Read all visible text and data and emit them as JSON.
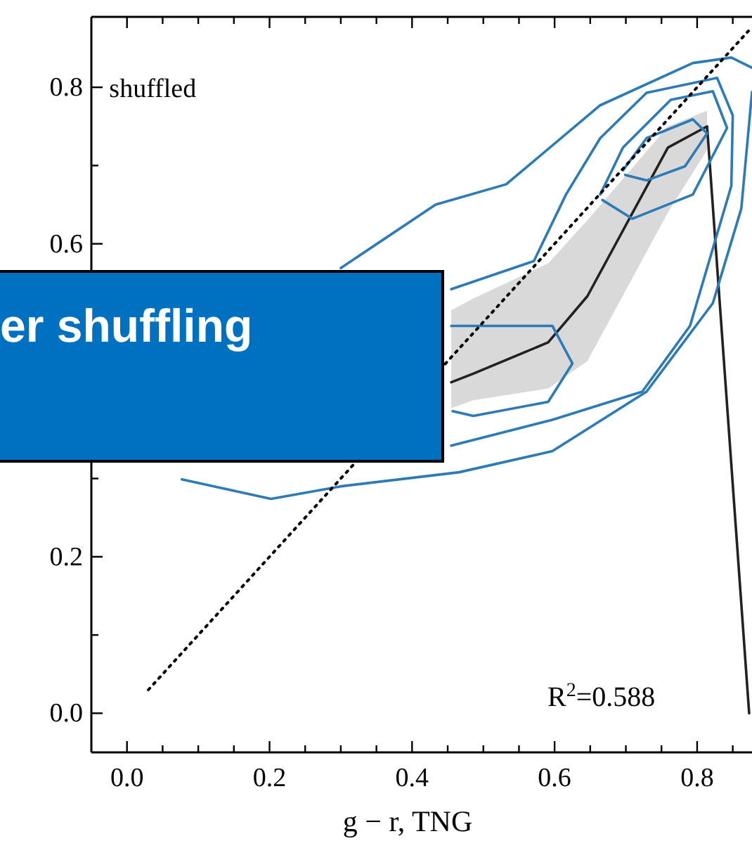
{
  "chart_data": {
    "type": "line",
    "xlabel": "g − r, TNG",
    "xlim": [
      -0.05,
      0.877
    ],
    "ylim": [
      -0.05,
      0.89
    ],
    "xticks": [
      {
        "value": 0,
        "label": "0.0"
      },
      {
        "value": 0.05,
        "label": null
      },
      {
        "value": 0.1,
        "label": null
      },
      {
        "value": 0.15,
        "label": null
      },
      {
        "value": 0.2,
        "label": "0.2"
      },
      {
        "value": 0.25,
        "label": null
      },
      {
        "value": 0.3,
        "label": null
      },
      {
        "value": 0.35,
        "label": null
      },
      {
        "value": 0.4,
        "label": "0.4"
      },
      {
        "value": 0.45,
        "label": null
      },
      {
        "value": 0.5,
        "label": null
      },
      {
        "value": 0.55,
        "label": null
      },
      {
        "value": 0.6,
        "label": "0.6"
      },
      {
        "value": 0.65,
        "label": null
      },
      {
        "value": 0.7,
        "label": null
      },
      {
        "value": 0.75,
        "label": null
      },
      {
        "value": 0.8,
        "label": "0.8"
      },
      {
        "value": 0.85,
        "label": null
      }
    ],
    "yticks": [
      {
        "value": 0,
        "label": "0.0"
      },
      {
        "value": 0.1,
        "label": null
      },
      {
        "value": 0.2,
        "label": "0.2"
      },
      {
        "value": 0.3,
        "label": null
      },
      {
        "value": 0.4,
        "label": null
      },
      {
        "value": 0.5,
        "label": null
      },
      {
        "value": 0.6,
        "label": "0.6"
      },
      {
        "value": 0.7,
        "label": null
      },
      {
        "value": 0.8,
        "label": "0.8"
      }
    ],
    "grid": false,
    "legend": false,
    "marker": "none",
    "series": [
      {
        "color": "#222222",
        "x": [
          0.455,
          0.486,
          0.591,
          0.646,
          0.759,
          0.814,
          0.873
        ],
        "values": [
          0.423,
          0.434,
          0.474,
          0.533,
          0.723,
          0.75,
          0
        ],
        "lower": [
          0.39,
          0.4,
          0.415,
          0.45,
          0.64,
          0.72,
          null
        ],
        "upper": [
          0.515,
          0.53,
          0.575,
          0.63,
          0.75,
          0.77,
          null
        ]
      },
      {
        "color": "#2c7bb6",
        "x": [
          0.3,
          0.433,
          0.532,
          0.664,
          0.794,
          0.848,
          0.877
        ],
        "values": [
          0.569,
          0.65,
          0.676,
          0.777,
          0.831,
          0.838,
          0.825
        ]
      },
      {
        "color": "#2c7bb6",
        "x": [
          0.077,
          0.202,
          0.3,
          0.466,
          0.597,
          0.729,
          0.822,
          0.862,
          0.877
        ],
        "values": [
          0.299,
          0.274,
          0.29,
          0.308,
          0.335,
          0.411,
          0.524,
          0.645,
          0.794
        ]
      },
      {
        "color": "#2c7bb6",
        "x": [
          0.455,
          0.571,
          0.616,
          0.664,
          0.729,
          0.828,
          0.85,
          0.848,
          0.79,
          0.723,
          0.597,
          0.455
        ],
        "values": [
          0.542,
          0.578,
          0.663,
          0.735,
          0.793,
          0.812,
          0.764,
          0.674,
          0.495,
          0.411,
          0.375,
          0.342
        ]
      },
      {
        "color": "#2c7bb6",
        "x": [
          0.664,
          0.696,
          0.763,
          0.822,
          0.842,
          0.794,
          0.709,
          0.667
        ],
        "values": [
          0.663,
          0.723,
          0.784,
          0.795,
          0.748,
          0.663,
          0.632,
          0.656
        ]
      },
      {
        "color": "#2c7bb6",
        "x": [
          0.696,
          0.729,
          0.794,
          0.814,
          0.783,
          0.729,
          0.699
        ],
        "values": [
          0.694,
          0.735,
          0.759,
          0.741,
          0.699,
          0.681,
          0.688
        ]
      },
      {
        "color": "#2c7bb6",
        "x": [
          0.455,
          0.597,
          0.625,
          0.591,
          0.486,
          0.457
        ],
        "values": [
          0.495,
          0.495,
          0.447,
          0.398,
          0.38,
          0.386
        ]
      },
      {
        "color": "#000000",
        "line_style": "dotted",
        "x": [
          0.03,
          0.872
        ],
        "values": [
          0.03,
          0.872
        ]
      }
    ],
    "annotations": [
      "shuffled",
      "R$^{2}$=0.588",
      "er shuffling"
    ]
  }
}
